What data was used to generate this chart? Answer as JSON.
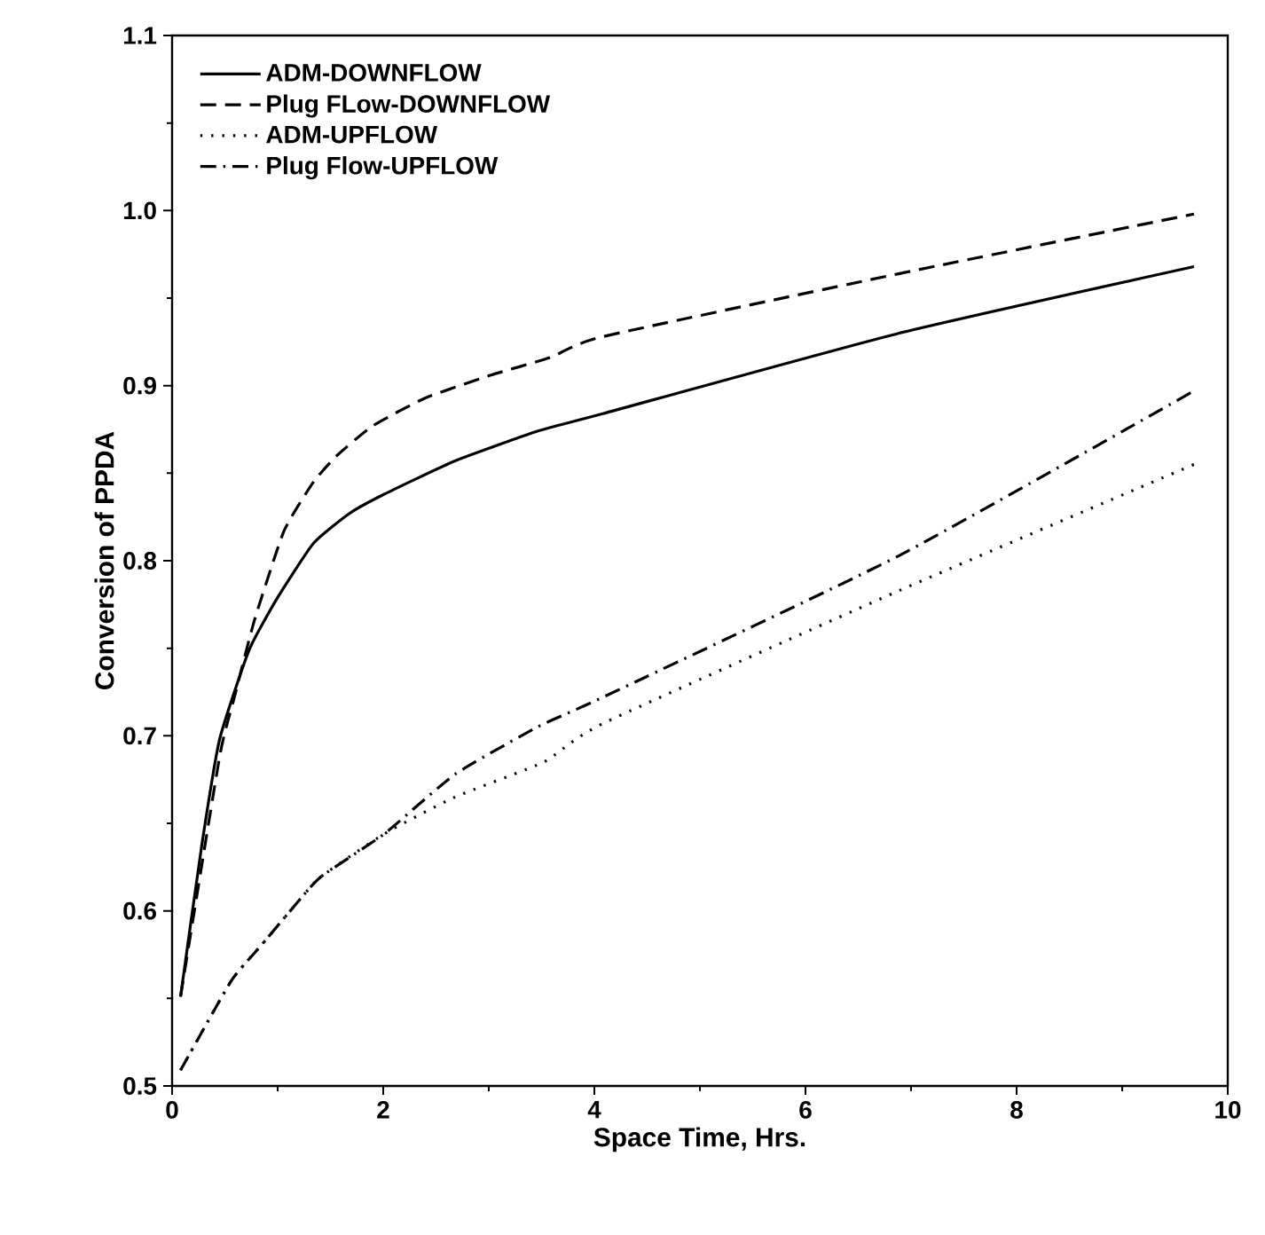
{
  "chart_data": {
    "type": "line",
    "xlabel": "Space Time, Hrs.",
    "ylabel": "Conversion of PPDA",
    "xlim": [
      0,
      10
    ],
    "ylim": [
      0.5,
      1.1
    ],
    "xticks": [
      0,
      2,
      4,
      6,
      8,
      10
    ],
    "yticks": [
      0.5,
      0.6,
      0.7,
      0.8,
      0.9,
      {
        "value": 1.0,
        "label": "1.0"
      },
      1.1
    ],
    "legend": "top left",
    "grid": false,
    "marker": "none",
    "series": [
      {
        "name": "ADM-DOWNFLOW",
        "color": "#000000",
        "line_style": "solid",
        "x": [
          0.08,
          0.28,
          0.45,
          0.73,
          1.0,
          1.34,
          1.68,
          2.01,
          2.68,
          3.46,
          4.08,
          6.89,
          9.68
        ],
        "values": [
          0.551,
          0.637,
          0.698,
          0.749,
          0.779,
          0.81,
          0.827,
          0.838,
          0.857,
          0.874,
          0.884,
          0.93,
          0.968
        ]
      },
      {
        "name": "Plug FLow-DOWNFLOW",
        "color": "#000000",
        "line_style": "dashed",
        "x": [
          0.08,
          0.45,
          0.59,
          0.78,
          1.06,
          1.34,
          1.56,
          1.9,
          2.4,
          3.02,
          3.58,
          4.08,
          6.89,
          9.68
        ],
        "values": [
          0.551,
          0.688,
          0.722,
          0.766,
          0.817,
          0.845,
          0.86,
          0.877,
          0.893,
          0.906,
          0.916,
          0.928,
          0.964,
          0.998
        ]
      },
      {
        "name": "ADM-UPFLOW",
        "color": "#000000",
        "line_style": "dotted",
        "x": [
          0.08,
          0.56,
          0.84,
          1.12,
          1.4,
          2.01,
          2.68,
          3.52,
          4.08,
          6.89,
          9.68
        ],
        "values": [
          0.509,
          0.56,
          0.58,
          0.6,
          0.619,
          0.644,
          0.665,
          0.685,
          0.707,
          0.783,
          0.855
        ]
      },
      {
        "name": "Plug Flow-UPFLOW",
        "color": "#000000",
        "line_style": "dashdot",
        "x": [
          0.08,
          0.56,
          0.84,
          1.12,
          1.4,
          2.01,
          2.68,
          3.46,
          4.08,
          6.89,
          9.68
        ],
        "values": [
          0.509,
          0.56,
          0.58,
          0.6,
          0.619,
          0.644,
          0.678,
          0.705,
          0.722,
          0.803,
          0.897
        ]
      }
    ]
  }
}
